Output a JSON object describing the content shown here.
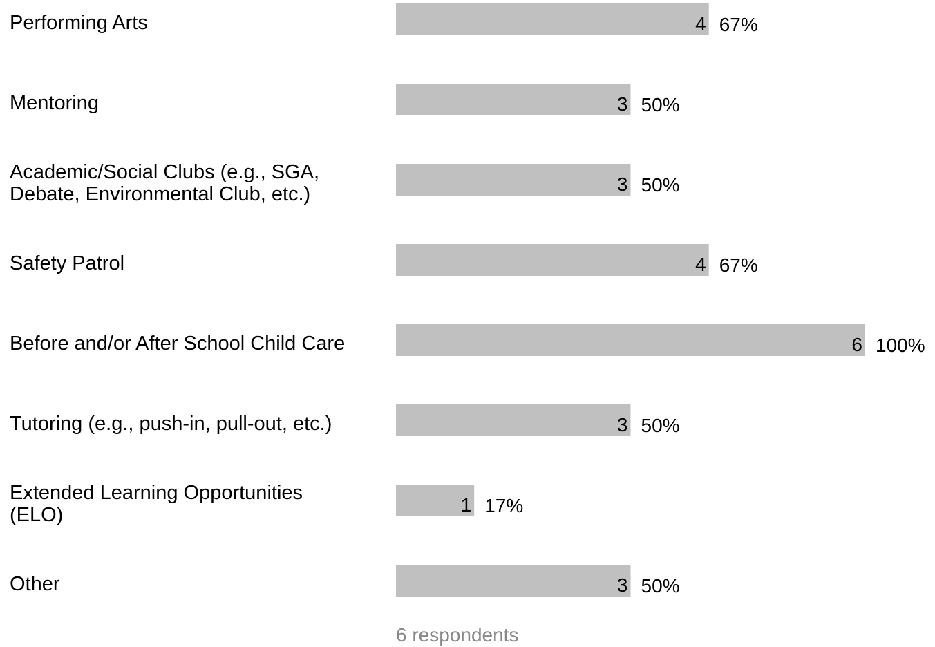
{
  "chart_data": {
    "type": "bar",
    "orientation": "horizontal",
    "categories": [
      [
        "Performing Arts"
      ],
      [
        "Mentoring"
      ],
      [
        "Academic/Social Clubs (e.g., SGA,",
        "Debate, Environmental Club, etc.)"
      ],
      [
        "Safety Patrol"
      ],
      [
        "Before and/or After School Child Care"
      ],
      [
        "Tutoring (e.g., push-in, pull-out, etc.)"
      ],
      [
        "Extended Learning Opportunities",
        "(ELO)"
      ],
      [
        "Other"
      ]
    ],
    "values": [
      4,
      3,
      3,
      4,
      6,
      3,
      1,
      3
    ],
    "percent_labels": [
      "67%",
      "50%",
      "50%",
      "67%",
      "100%",
      "50%",
      "17%",
      "50%"
    ],
    "max_value": 6,
    "bar_color": "#c0c0c0",
    "footer": "6 respondents",
    "grid": false,
    "legend": "none"
  }
}
